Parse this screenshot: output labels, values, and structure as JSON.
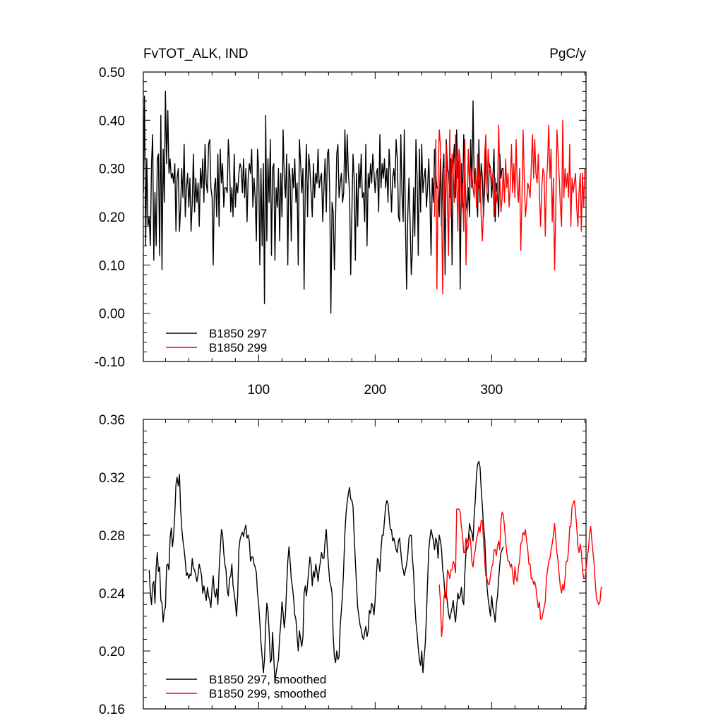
{
  "chart_data": [
    {
      "type": "line",
      "title_left": "FvTOT_ALK, IND",
      "title_right": "PgC/y",
      "xlim": [
        1,
        381
      ],
      "ylim": [
        -0.1,
        0.5
      ],
      "xticks": [
        100,
        200,
        300
      ],
      "xtick_labels": [
        "100",
        "200",
        "300"
      ],
      "yticks": [
        -0.1,
        0.0,
        0.1,
        0.2,
        0.3,
        0.4,
        0.5
      ],
      "ytick_labels": [
        "-0.10",
        "0.00",
        "0.10",
        "0.20",
        "0.30",
        "0.40",
        "0.50"
      ],
      "series": [
        {
          "name": "B1850 297",
          "color": "#000000",
          "x_start": 1,
          "values": [
            0.25,
            0.45,
            0.14,
            0.32,
            0.18,
            0.2,
            0.14,
            0.31,
            0.37,
            0.11,
            0.25,
            0.14,
            0.32,
            0.33,
            0.12,
            0.41,
            0.09,
            0.34,
            0.23,
            0.46,
            0.31,
            0.42,
            0.29,
            0.32,
            0.28,
            0.29,
            0.27,
            0.31,
            0.17,
            0.28,
            0.3,
            0.17,
            0.22,
            0.3,
            0.24,
            0.35,
            0.2,
            0.26,
            0.29,
            0.22,
            0.28,
            0.17,
            0.23,
            0.33,
            0.21,
            0.28,
            0.23,
            0.27,
            0.18,
            0.3,
            0.26,
            0.32,
            0.23,
            0.35,
            0.27,
            0.25,
            0.35,
            0.36,
            0.26,
            0.24,
            0.1,
            0.26,
            0.28,
            0.2,
            0.33,
            0.18,
            0.34,
            0.27,
            0.31,
            0.22,
            0.26,
            0.26,
            0.25,
            0.36,
            0.31,
            0.21,
            0.26,
            0.2,
            0.33,
            0.22,
            0.27,
            0.25,
            0.29,
            0.31,
            0.3,
            0.25,
            0.32,
            0.24,
            0.3,
            0.19,
            0.28,
            0.31,
            0.29,
            0.34,
            0.22,
            0.28,
            0.24,
            0.15,
            0.34,
            0.3,
            0.1,
            0.3,
            0.14,
            0.31,
            0.02,
            0.41,
            0.15,
            0.32,
            0.23,
            0.36,
            0.12,
            0.3,
            0.31,
            0.11,
            0.26,
            0.22,
            0.3,
            0.15,
            0.29,
            0.2,
            0.38,
            0.28,
            0.24,
            0.33,
            0.1,
            0.31,
            0.28,
            0.15,
            0.3,
            0.26,
            0.32,
            0.23,
            0.27,
            0.1,
            0.36,
            0.31,
            0.25,
            0.3,
            0.05,
            0.27,
            0.35,
            0.2,
            0.33,
            0.3,
            0.25,
            0.2,
            0.31,
            0.24,
            0.29,
            0.27,
            0.34,
            0.26,
            0.28,
            0.29,
            0.19,
            0.26,
            0.32,
            0.21,
            0.33,
            0.34,
            0.25,
            0.0,
            0.23,
            0.21,
            0.09,
            0.2,
            0.33,
            0.35,
            0.24,
            0.27,
            0.29,
            0.23,
            0.25,
            0.38,
            0.27,
            0.37,
            0.29,
            0.25,
            0.08,
            0.21,
            0.33,
            0.28,
            0.11,
            0.29,
            0.18,
            0.31,
            0.26,
            0.33,
            0.24,
            0.25,
            0.19,
            0.35,
            0.14,
            0.29,
            0.26,
            0.31,
            0.27,
            0.33,
            0.29,
            0.25,
            0.29,
            0.3,
            0.21,
            0.37,
            0.26,
            0.31,
            0.28,
            0.32,
            0.26,
            0.3,
            0.23,
            0.34,
            0.29,
            0.21,
            0.28,
            0.3,
            0.26,
            0.36,
            0.32,
            0.2,
            0.19,
            0.37,
            0.25,
            0.19,
            0.38,
            0.18,
            0.05,
            0.2,
            0.28,
            0.19,
            0.08,
            0.13,
            0.26,
            0.16,
            0.36,
            0.28,
            0.12,
            0.34,
            0.21,
            0.35,
            0.25,
            0.28,
            0.3,
            0.22,
            0.26,
            0.32,
            0.24,
            0.12,
            0.28,
            0.23,
            0.34,
            0.29,
            0.26,
            0.26,
            0.2,
            0.32,
            0.18,
            0.29,
            0.33,
            0.08,
            0.36,
            0.3,
            0.29,
            0.24,
            0.32,
            0.1,
            0.31,
            0.35,
            0.24,
            0.38,
            0.28,
            0.32,
            0.05,
            0.31,
            0.22,
            0.37,
            0.29,
            0.23,
            0.21,
            0.26,
            0.2,
            0.36,
            0.26,
            0.44,
            0.27,
            0.3,
            0.24,
            0.2,
            0.36,
            0.23,
            0.31,
            0.28,
            0.2,
            0.26,
            0.34,
            0.25,
            0.23,
            0.31,
            0.3,
            0.24,
            0.28,
            0.34,
            0.19,
            0.27,
            0.25,
            0.2,
            0.33,
            0.28,
            0.3,
            0.3
          ]
        },
        {
          "name": "B1850 299",
          "color": "#ff0000",
          "x_start": 251,
          "values": [
            0.2,
            0.36,
            0.05,
            0.27,
            0.38,
            0.35,
            0.23,
            0.04,
            0.3,
            0.2,
            0.35,
            0.23,
            0.12,
            0.38,
            0.2,
            0.33,
            0.29,
            0.23,
            0.37,
            0.28,
            0.17,
            0.34,
            0.32,
            0.21,
            0.27,
            0.17,
            0.36,
            0.1,
            0.22,
            0.34,
            0.26,
            0.3,
            0.29,
            0.26,
            0.24,
            0.3,
            0.22,
            0.33,
            0.26,
            0.29,
            0.2,
            0.15,
            0.22,
            0.33,
            0.37,
            0.25,
            0.34,
            0.29,
            0.3,
            0.27,
            0.29,
            0.2,
            0.28,
            0.23,
            0.25,
            0.39,
            0.28,
            0.21,
            0.24,
            0.3,
            0.23,
            0.32,
            0.26,
            0.29,
            0.22,
            0.27,
            0.35,
            0.25,
            0.31,
            0.24,
            0.36,
            0.26,
            0.23,
            0.3,
            0.13,
            0.24,
            0.38,
            0.28,
            0.2,
            0.23,
            0.27,
            0.26,
            0.24,
            0.3,
            0.37,
            0.28,
            0.36,
            0.29,
            0.27,
            0.33,
            0.25,
            0.18,
            0.26,
            0.3,
            0.29,
            0.16,
            0.27,
            0.31,
            0.39,
            0.28,
            0.34,
            0.19,
            0.28,
            0.09,
            0.21,
            0.38,
            0.33,
            0.28,
            0.22,
            0.18,
            0.4,
            0.24,
            0.3,
            0.26,
            0.29,
            0.24,
            0.35,
            0.18,
            0.28,
            0.25,
            0.27,
            0.29,
            0.22,
            0.18,
            0.25,
            0.29,
            0.17,
            0.29,
            0.22,
            0.3
          ]
        }
      ],
      "legend_placement": "bottom-left"
    },
    {
      "type": "line",
      "xlim": [
        1,
        381
      ],
      "ylim": [
        0.16,
        0.36
      ],
      "xticks": [
        100,
        200,
        300
      ],
      "yticks": [
        0.16,
        0.2,
        0.24,
        0.28,
        0.32,
        0.36
      ],
      "ytick_labels": [
        "0.16",
        "0.20",
        "0.24",
        "0.28",
        "0.32",
        "0.36"
      ],
      "series": [
        {
          "name": "B1850 297, smoothed",
          "color": "#000000",
          "x_start": 6,
          "values": [
            0.256,
            0.24,
            0.232,
            0.246,
            0.248,
            0.233,
            0.258,
            0.268,
            0.255,
            0.258,
            0.235,
            0.233,
            0.22,
            0.228,
            0.23,
            0.259,
            0.26,
            0.256,
            0.278,
            0.285,
            0.272,
            0.28,
            0.295,
            0.315,
            0.32,
            0.314,
            0.322,
            0.298,
            0.285,
            0.276,
            0.27,
            0.262,
            0.252,
            0.254,
            0.25,
            0.253,
            0.252,
            0.264,
            0.257,
            0.256,
            0.252,
            0.248,
            0.253,
            0.26,
            0.256,
            0.252,
            0.24,
            0.245,
            0.24,
            0.235,
            0.244,
            0.238,
            0.235,
            0.23,
            0.244,
            0.252,
            0.24,
            0.237,
            0.243,
            0.232,
            0.256,
            0.27,
            0.284,
            0.281,
            0.268,
            0.26,
            0.256,
            0.242,
            0.238,
            0.25,
            0.252,
            0.26,
            0.245,
            0.24,
            0.233,
            0.224,
            0.238,
            0.27,
            0.277,
            0.28,
            0.282,
            0.279,
            0.284,
            0.287,
            0.278,
            0.28,
            0.276,
            0.262,
            0.265,
            0.265,
            0.26,
            0.258,
            0.254,
            0.24,
            0.232,
            0.22,
            0.206,
            0.196,
            0.185,
            0.194,
            0.218,
            0.233,
            0.228,
            0.213,
            0.192,
            0.194,
            0.213,
            0.195,
            0.178,
            0.185,
            0.19,
            0.194,
            0.21,
            0.219,
            0.234,
            0.226,
            0.216,
            0.225,
            0.245,
            0.262,
            0.272,
            0.262,
            0.25,
            0.244,
            0.236,
            0.225,
            0.222,
            0.21,
            0.2,
            0.214,
            0.208,
            0.203,
            0.21,
            0.24,
            0.245,
            0.238,
            0.246,
            0.256,
            0.265,
            0.26,
            0.245,
            0.255,
            0.251,
            0.26,
            0.255,
            0.248,
            0.256,
            0.262,
            0.268,
            0.264,
            0.264,
            0.276,
            0.284,
            0.27,
            0.258,
            0.248,
            0.245,
            0.24,
            0.21,
            0.196,
            0.192,
            0.2,
            0.194,
            0.196,
            0.218,
            0.228,
            0.24,
            0.258,
            0.282,
            0.295,
            0.303,
            0.309,
            0.313,
            0.305,
            0.304,
            0.3,
            0.28,
            0.262,
            0.246,
            0.23,
            0.224,
            0.218,
            0.215,
            0.21,
            0.208,
            0.213,
            0.217,
            0.21,
            0.214,
            0.228,
            0.226,
            0.233,
            0.231,
            0.225,
            0.235,
            0.252,
            0.264,
            0.262,
            0.255,
            0.27,
            0.28,
            0.28,
            0.29,
            0.3,
            0.304,
            0.302,
            0.293,
            0.284,
            0.284,
            0.276,
            0.278,
            0.274,
            0.27,
            0.268,
            0.276,
            0.278,
            0.268,
            0.26,
            0.256,
            0.252,
            0.256,
            0.26,
            0.266,
            0.278,
            0.28,
            0.28,
            0.264,
            0.254,
            0.234,
            0.22,
            0.212,
            0.202,
            0.194,
            0.19,
            0.2,
            0.185,
            0.195,
            0.205,
            0.225,
            0.248,
            0.27,
            0.278,
            0.284,
            0.28,
            0.276,
            0.27,
            0.278,
            0.275,
            0.264,
            0.28,
            0.276,
            0.27,
            0.256,
            0.25,
            0.237,
            0.24,
            0.233,
            0.226,
            0.222,
            0.226,
            0.23,
            0.235,
            0.226,
            0.22,
            0.23,
            0.24,
            0.236,
            0.238,
            0.244,
            0.235,
            0.232,
            0.254,
            0.268,
            0.276,
            0.277,
            0.288,
            0.284,
            0.282,
            0.276,
            0.294,
            0.305,
            0.322,
            0.329,
            0.331,
            0.327,
            0.312,
            0.3,
            0.286,
            0.278,
            0.26,
            0.244,
            0.236,
            0.23,
            0.224,
            0.238,
            0.23,
            0.226,
            0.22,
            0.232,
            0.238,
            0.25,
            0.26,
            0.268,
            0.27,
            0.272
          ]
        },
        {
          "name": "B1850 299, smoothed",
          "color": "#ff0000",
          "x_start": 255,
          "values": [
            0.246,
            0.234,
            0.21,
            0.218,
            0.236,
            0.242,
            0.236,
            0.256,
            0.254,
            0.25,
            0.256,
            0.256,
            0.262,
            0.26,
            0.254,
            0.298,
            0.298,
            0.298,
            0.296,
            0.286,
            0.28,
            0.268,
            0.268,
            0.278,
            0.27,
            0.272,
            0.28,
            0.276,
            0.262,
            0.258,
            0.266,
            0.27,
            0.278,
            0.28,
            0.286,
            0.282,
            0.29,
            0.29,
            0.276,
            0.262,
            0.252,
            0.25,
            0.246,
            0.246,
            0.252,
            0.258,
            0.26,
            0.27,
            0.27,
            0.266,
            0.272,
            0.276,
            0.27,
            0.29,
            0.296,
            0.294,
            0.286,
            0.276,
            0.268,
            0.262,
            0.262,
            0.258,
            0.26,
            0.254,
            0.246,
            0.258,
            0.25,
            0.248,
            0.258,
            0.262,
            0.274,
            0.276,
            0.282,
            0.28,
            0.284,
            0.276,
            0.27,
            0.26,
            0.26,
            0.25,
            0.25,
            0.246,
            0.248,
            0.244,
            0.236,
            0.23,
            0.234,
            0.222,
            0.222,
            0.226,
            0.23,
            0.234,
            0.25,
            0.256,
            0.262,
            0.264,
            0.27,
            0.274,
            0.28,
            0.288,
            0.278,
            0.268,
            0.262,
            0.252,
            0.244,
            0.24,
            0.246,
            0.242,
            0.25,
            0.262,
            0.262,
            0.27,
            0.286,
            0.286,
            0.3,
            0.302,
            0.304,
            0.296,
            0.286,
            0.272,
            0.268,
            0.274,
            0.268,
            0.256,
            0.25,
            0.25,
            0.256,
            0.264,
            0.27,
            0.28,
            0.286,
            0.276,
            0.268,
            0.26,
            0.246,
            0.236,
            0.234,
            0.232,
            0.234,
            0.244,
            0.244
          ]
        }
      ],
      "legend_placement": "bottom-left"
    }
  ]
}
